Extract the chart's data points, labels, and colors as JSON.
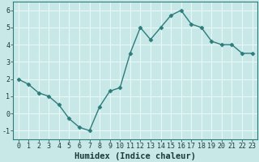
{
  "x": [
    0,
    1,
    2,
    3,
    4,
    5,
    6,
    7,
    8,
    9,
    10,
    11,
    12,
    13,
    14,
    15,
    16,
    17,
    18,
    19,
    20,
    21,
    22,
    23
  ],
  "y": [
    2.0,
    1.7,
    1.2,
    1.0,
    0.5,
    -0.3,
    -0.8,
    -1.0,
    0.4,
    1.3,
    1.5,
    3.5,
    5.0,
    4.3,
    5.0,
    5.7,
    6.0,
    5.2,
    5.0,
    4.2,
    4.0,
    4.0,
    3.5,
    3.5
  ],
  "xlabel": "Humidex (Indice chaleur)",
  "xlim": [
    -0.5,
    23.5
  ],
  "ylim": [
    -1.5,
    6.5
  ],
  "yticks": [
    -1,
    0,
    1,
    2,
    3,
    4,
    5,
    6
  ],
  "xticks": [
    0,
    1,
    2,
    3,
    4,
    5,
    6,
    7,
    8,
    9,
    10,
    11,
    12,
    13,
    14,
    15,
    16,
    17,
    18,
    19,
    20,
    21,
    22,
    23
  ],
  "xtick_labels": [
    "0",
    "1",
    "2",
    "3",
    "4",
    "5",
    "6",
    "7",
    "8",
    "9",
    "10",
    "11",
    "12",
    "13",
    "14",
    "15",
    "16",
    "17",
    "18",
    "19",
    "20",
    "21",
    "22",
    "23"
  ],
  "line_color": "#2d7c7c",
  "marker": "D",
  "marker_size": 2.5,
  "bg_color": "#c8e8e8",
  "grid_color": "#e8f8f8",
  "grid_linewidth": 0.8,
  "tick_fontsize": 6.0,
  "xlabel_fontsize": 7.5
}
